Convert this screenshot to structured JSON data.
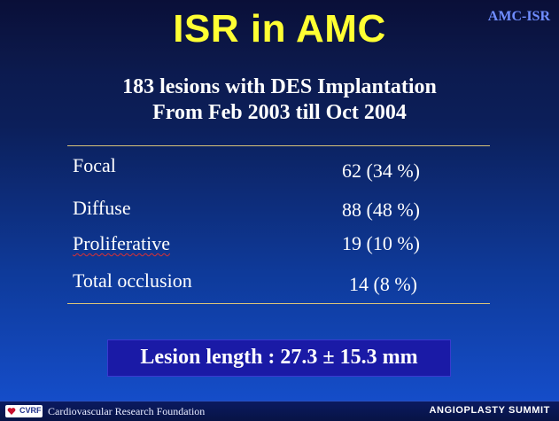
{
  "header": {
    "title": "ISR in AMC",
    "tag": "AMC-ISR"
  },
  "subtitle": {
    "line1": "183 lesions with DES Implantation",
    "line2": "From Feb 2003 till Oct 2004"
  },
  "table": {
    "rows": [
      {
        "label": "Focal",
        "value": "62 (34 %)"
      },
      {
        "label": "Diffuse",
        "value": "88 (48 %)"
      },
      {
        "label": "Proliferative",
        "value": "19 (10 %)"
      },
      {
        "label": "Total occlusion",
        "value": "14 (8 %)"
      }
    ]
  },
  "highlight": {
    "text": "Lesion length : 27.3 ± 15.3 mm"
  },
  "footer": {
    "logo_text": "CVRF",
    "organization": "Cardiovascular Research Foundation",
    "event": "ANGIOPLASTY SUMMIT"
  },
  "colors": {
    "title": "#ffff33",
    "tag": "#6f8dff",
    "rule": "#d9c37a",
    "box": "#1a1aa6"
  }
}
